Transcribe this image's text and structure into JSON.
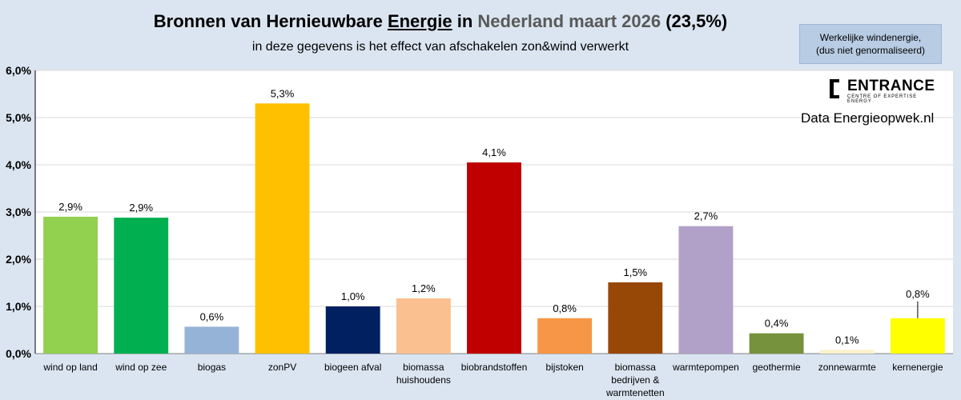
{
  "header": {
    "title_part1": "Bronnen van Hernieuwbare ",
    "title_part2": "Energie",
    "title_part3": " in ",
    "title_part4": "Nederland maart 2026",
    "title_part5": " (23,5%)",
    "subtitle": "in deze gegevens is het effect van afschakelen zon&wind verwerkt"
  },
  "note": {
    "line1": "Werkelijke windenergie,",
    "line2": "(dus niet genormaliseerd)"
  },
  "logo": {
    "name": "ENTRANCE",
    "tagline": "CENTRE OF EXPERTISE ENERGY"
  },
  "source": "Data Energieopwek.nl",
  "colors": {
    "background": "#dbe5f1",
    "plot_bg": "#ffffff",
    "grid": "#d9d9d9",
    "axis": "#000000",
    "bars": [
      "#92d050",
      "#00b050",
      "#95b3d7",
      "#ffc000",
      "#002060",
      "#fac090",
      "#c00000",
      "#f79646",
      "#974706",
      "#b1a0c7",
      "#76923c",
      "#fdf1cb",
      "#ffff00"
    ]
  },
  "chart_data": {
    "type": "bar",
    "title": "Bronnen van Hernieuwbare Energie in Nederland maart 2026 (23,5%)",
    "xlabel": "",
    "ylabel": "",
    "ylim": [
      0,
      6
    ],
    "yticks": [
      0,
      1,
      2,
      3,
      4,
      5,
      6
    ],
    "ytick_labels": [
      "0,0%",
      "1,0%",
      "2,0%",
      "3,0%",
      "4,0%",
      "5,0%",
      "6,0%"
    ],
    "categories": [
      [
        "wind op land"
      ],
      [
        "wind op zee"
      ],
      [
        "biogas"
      ],
      [
        "zonPV"
      ],
      [
        "biogeen afval"
      ],
      [
        "biomassa",
        "huishoudens"
      ],
      [
        "biobrandstoffen"
      ],
      [
        "bijstoken"
      ],
      [
        "biomassa",
        "bedrijven &",
        "warmtenetten"
      ],
      [
        "warmtepompen"
      ],
      [
        "geothermie"
      ],
      [
        "zonnewarmte"
      ],
      [
        "kernenergie"
      ]
    ],
    "values": [
      2.9,
      2.88,
      0.57,
      5.3,
      1.0,
      1.17,
      4.05,
      0.75,
      1.51,
      2.7,
      0.43,
      0.08,
      0.75
    ],
    "data_labels": [
      "2,9%",
      "2,9%",
      "0,6%",
      "5,3%",
      "1,0%",
      "1,2%",
      "4,1%",
      "0,8%",
      "1,5%",
      "2,7%",
      "0,4%",
      "0,1%",
      "0,8%"
    ],
    "grid": true,
    "legend": "none"
  }
}
